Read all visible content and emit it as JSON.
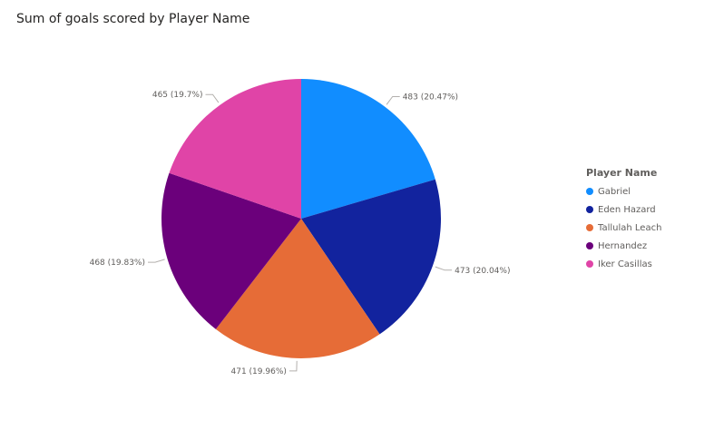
{
  "visual": {
    "title": "Sum of goals scored by Player Name"
  },
  "legend": {
    "title": "Player Name"
  },
  "chart_data": {
    "type": "pie",
    "title": "Sum of goals scored by Player Name",
    "legend_title": "Player Name",
    "legend_position": "right",
    "slices": [
      {
        "label": "Gabriel",
        "value": 483,
        "data_label": "483 (20.47%)",
        "color": "#118dff"
      },
      {
        "label": "Eden Hazard",
        "value": 473,
        "data_label": "473 (20.04%)",
        "color": "#12239e"
      },
      {
        "label": "Tallulah Leach",
        "value": 471,
        "data_label": "471 (19.96%)",
        "color": "#e66c37"
      },
      {
        "label": "Hernandez",
        "value": 468,
        "data_label": "468 (19.83%)",
        "color": "#6b007b"
      },
      {
        "label": "Iker Casillas",
        "value": 465,
        "data_label": "465 (19.7%)",
        "color": "#e044a7"
      }
    ]
  }
}
